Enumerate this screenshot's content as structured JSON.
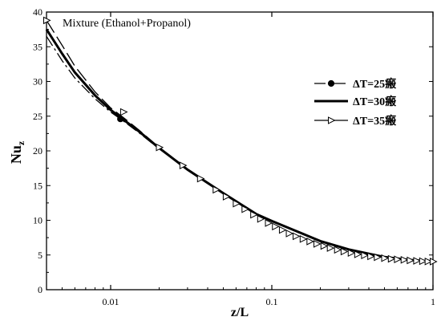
{
  "chart_data": {
    "type": "line",
    "annotation": "Mixture (Ethanol+Propanol)",
    "xlabel": "z/L",
    "ylabel": "Nu",
    "ylabel_sub": "z",
    "xscale": "log",
    "xlim": [
      0.004,
      1
    ],
    "ylim": [
      0,
      40
    ],
    "xticks": [
      {
        "value": 0.01,
        "label": "0.01"
      },
      {
        "value": 0.1,
        "label": "0.1"
      },
      {
        "value": 1,
        "label": "1"
      }
    ],
    "yticks": [
      {
        "value": 0,
        "label": "0"
      },
      {
        "value": 5,
        "label": "5"
      },
      {
        "value": 10,
        "label": "10"
      },
      {
        "value": 15,
        "label": "15"
      },
      {
        "value": 20,
        "label": "20"
      },
      {
        "value": 25,
        "label": "25"
      },
      {
        "value": 30,
        "label": "30"
      },
      {
        "value": 35,
        "label": "35"
      },
      {
        "value": 40,
        "label": "40"
      }
    ],
    "grid": false,
    "legend_position": "right",
    "series": [
      {
        "name": "ΔT=25瘢",
        "style": "dash-dot",
        "marker": "filled-circle",
        "x": [
          0.004,
          0.005,
          0.006,
          0.008,
          0.01,
          0.012,
          0.015,
          0.02,
          0.03,
          0.05,
          0.08,
          0.1,
          0.2,
          0.3,
          0.5,
          0.7,
          1.0
        ],
        "y": [
          36.5,
          33.0,
          30.5,
          27.5,
          25.6,
          24.3,
          22.6,
          20.3,
          17.3,
          13.9,
          10.9,
          9.9,
          7.0,
          5.8,
          4.7,
          4.3,
          4.05
        ],
        "markers_x": [
          0.0115
        ],
        "markers_y": [
          24.6
        ]
      },
      {
        "name": "ΔT=30瘢",
        "style": "solid-thick",
        "marker": "none",
        "x": [
          0.004,
          0.005,
          0.006,
          0.008,
          0.01,
          0.012,
          0.015,
          0.02,
          0.03,
          0.05,
          0.08,
          0.1,
          0.2,
          0.3,
          0.5,
          0.7,
          1.0
        ],
        "y": [
          37.5,
          34.0,
          31.3,
          28.0,
          25.9,
          24.5,
          22.8,
          20.4,
          17.3,
          13.9,
          10.9,
          9.9,
          7.0,
          5.8,
          4.7,
          4.3,
          4.05
        ]
      },
      {
        "name": "ΔT=35瘢",
        "style": "long-dash",
        "marker": "open-triangle-right",
        "x": [
          0.004,
          0.005,
          0.006,
          0.008,
          0.01,
          0.012,
          0.015,
          0.02,
          0.03,
          0.05,
          0.08,
          0.1,
          0.2,
          0.3,
          0.5,
          0.7,
          1.0
        ],
        "y": [
          38.8,
          35.2,
          32.2,
          28.5,
          26.2,
          24.8,
          23.0,
          20.5,
          17.4,
          13.9,
          10.9,
          9.9,
          7.0,
          5.8,
          4.7,
          4.3,
          4.05
        ],
        "markers_x": [
          0.004,
          0.012,
          0.02,
          0.028,
          0.036,
          0.045,
          0.052,
          0.06,
          0.068,
          0.077,
          0.085,
          0.095,
          0.105,
          0.116,
          0.128,
          0.141,
          0.156,
          0.172,
          0.19,
          0.21,
          0.23,
          0.255,
          0.28,
          0.31,
          0.34,
          0.375,
          0.41,
          0.45,
          0.5,
          0.55,
          0.6,
          0.66,
          0.72,
          0.79,
          0.86,
          0.93,
          1.0
        ],
        "markers_y": [
          38.8,
          25.6,
          20.5,
          17.9,
          16.0,
          14.4,
          13.4,
          12.4,
          11.6,
          10.8,
          10.2,
          9.6,
          9.1,
          8.6,
          8.1,
          7.7,
          7.3,
          6.95,
          6.6,
          6.3,
          6.0,
          5.75,
          5.5,
          5.3,
          5.1,
          4.95,
          4.8,
          4.68,
          4.55,
          4.45,
          4.37,
          4.3,
          4.22,
          4.16,
          4.11,
          4.07,
          4.05
        ]
      }
    ]
  }
}
